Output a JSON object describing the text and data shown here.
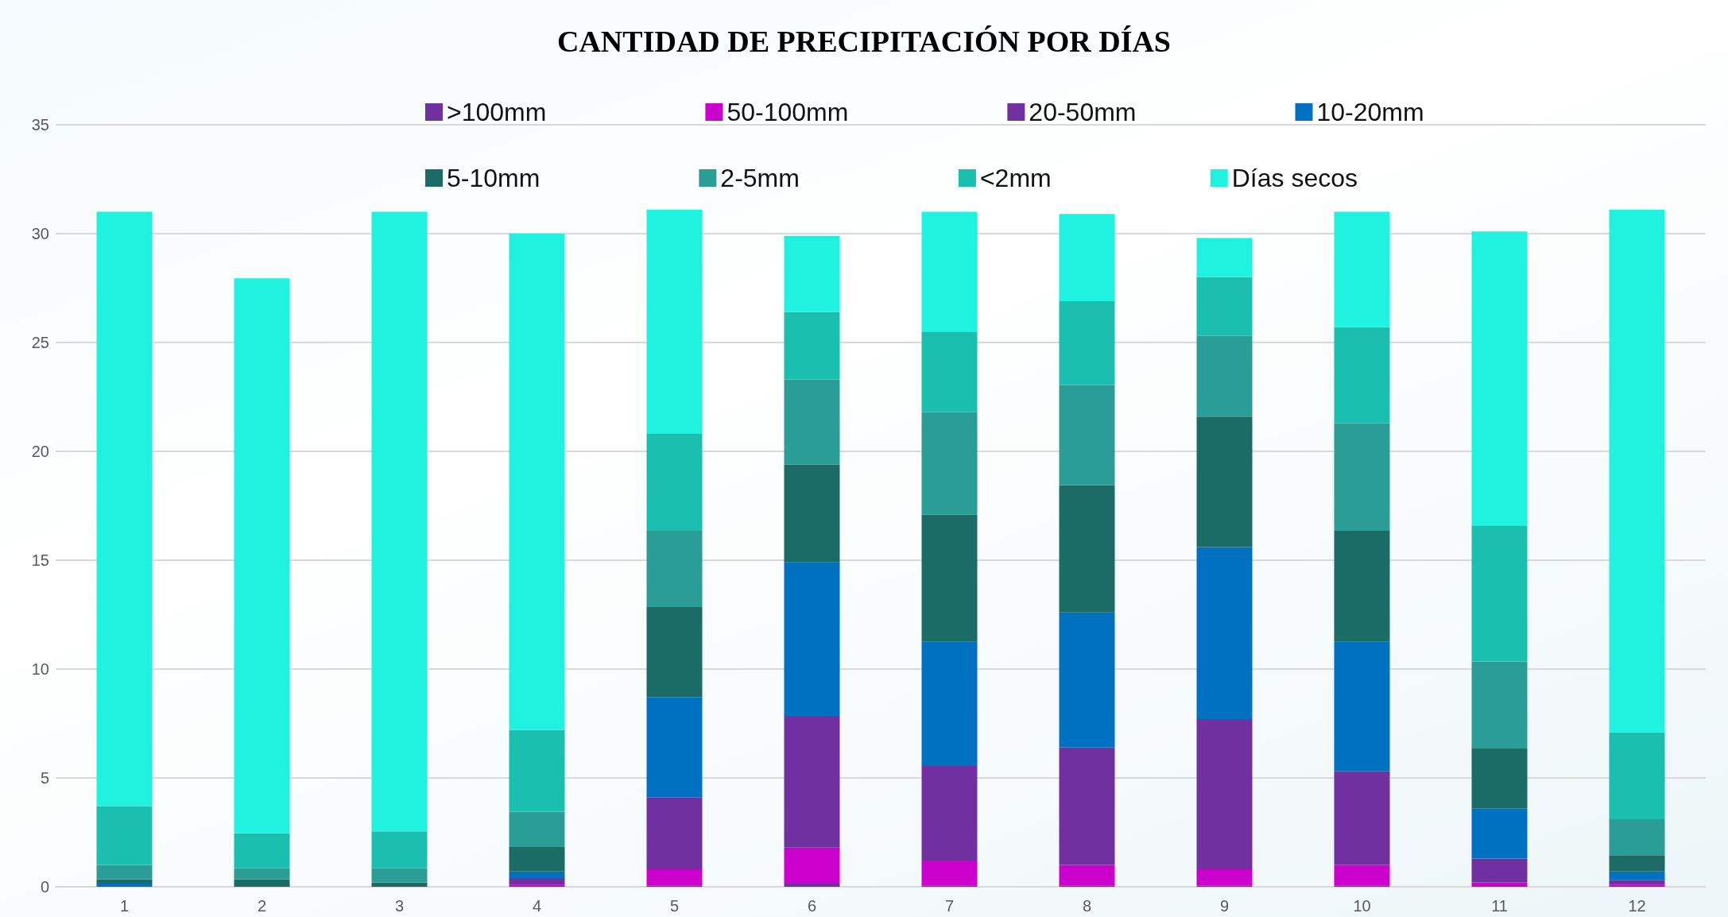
{
  "chart_data": {
    "type": "bar",
    "title": "CANTIDAD DE PRECIPITACIÓN POR DÍAS",
    "stacked": true,
    "categories": [
      "1",
      "2",
      "3",
      "4",
      "5",
      "6",
      "7",
      "8",
      "9",
      "10",
      "11",
      "12"
    ],
    "series": [
      {
        "name": ">100mm",
        "color": "#7030a0",
        "values": [
          0,
          0,
          0,
          0,
          0.05,
          0.15,
          0.05,
          0.05,
          0.05,
          0.05,
          0,
          0
        ]
      },
      {
        "name": "50-100mm",
        "color": "#cc00cc",
        "values": [
          0,
          0,
          0,
          0.1,
          0.75,
          1.65,
          1.15,
          0.95,
          0.75,
          0.95,
          0.2,
          0.1
        ]
      },
      {
        "name": "20-50mm",
        "color": "#7030a0",
        "values": [
          0,
          0,
          0,
          0.3,
          3.3,
          6.05,
          4.35,
          5.4,
          6.9,
          4.3,
          1.1,
          0.2
        ]
      },
      {
        "name": "10-20mm",
        "color": "#0070c0",
        "values": [
          0.15,
          0,
          0,
          0.3,
          4.6,
          7.05,
          5.7,
          6.2,
          7.9,
          5.95,
          2.3,
          0.4
        ]
      },
      {
        "name": "5-10mm",
        "color": "#1b6b66",
        "values": [
          0.2,
          0.35,
          0.2,
          1.15,
          4.15,
          4.5,
          5.85,
          5.85,
          6.0,
          5.1,
          2.75,
          0.75
        ]
      },
      {
        "name": "2-5mm",
        "color": "#2a9d96",
        "values": [
          0.65,
          0.5,
          0.65,
          1.6,
          3.5,
          3.9,
          4.7,
          4.6,
          3.7,
          4.95,
          4.0,
          1.65
        ]
      },
      {
        "name": "<2mm",
        "color": "#1bbfb0",
        "values": [
          2.7,
          1.6,
          1.7,
          3.75,
          4.45,
          3.1,
          3.7,
          3.85,
          2.7,
          4.4,
          6.25,
          4.0
        ]
      },
      {
        "name": "Días secos",
        "color": "#20f2e0",
        "values": [
          27.3,
          25.5,
          28.45,
          22.8,
          10.3,
          3.5,
          5.5,
          4.0,
          1.8,
          5.3,
          13.5,
          24.0
        ]
      }
    ],
    "ylim": [
      0,
      35
    ],
    "yticks": [
      0,
      5,
      10,
      15,
      20,
      25,
      30,
      35
    ],
    "grid": "y",
    "legend": "top"
  }
}
